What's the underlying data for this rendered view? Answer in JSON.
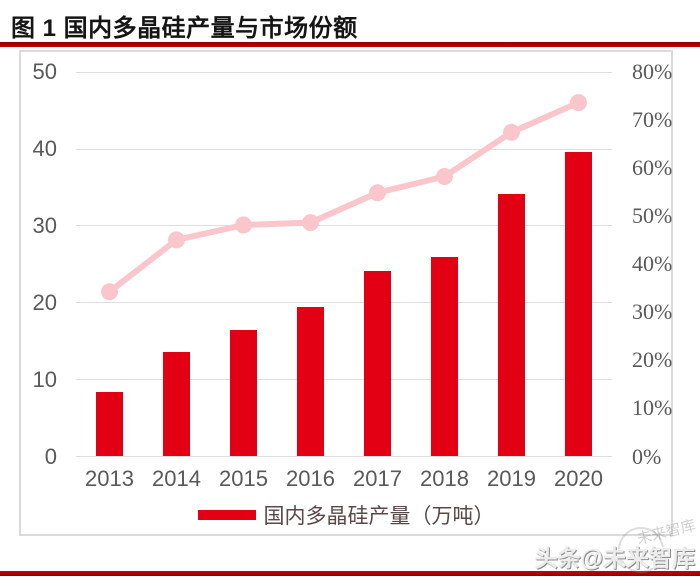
{
  "header": {
    "title": "图 1 国内多晶硅产量与市场份额"
  },
  "colors": {
    "bar": "#E30015",
    "line": "#FAC6CC",
    "accent_rule": "#C00000",
    "grid": "#DEDEDE",
    "box_border": "#DADADA",
    "axis_text": "#595959",
    "legend_text": "#5A4747"
  },
  "chart_data": {
    "type": "bar+line combo, dual axis",
    "title": "国内多晶硅产量与市场份额",
    "categories": [
      "2013",
      "2014",
      "2015",
      "2016",
      "2017",
      "2018",
      "2019",
      "2020"
    ],
    "series": [
      {
        "name": "国内多晶硅产量（万吨）",
        "type": "bar",
        "axis": "left",
        "values": [
          8.4,
          13.6,
          16.5,
          19.4,
          24.2,
          26.0,
          34.2,
          39.6
        ]
      },
      {
        "name": "市场份额",
        "type": "line",
        "axis": "right",
        "values": [
          34.3,
          45.1,
          48.2,
          48.7,
          54.9,
          58.3,
          67.5,
          73.7
        ]
      }
    ],
    "left_axis": {
      "min": 0,
      "max": 50,
      "step": 10,
      "ticks": [
        "0",
        "10",
        "20",
        "30",
        "40",
        "50"
      ]
    },
    "right_axis": {
      "min": 0,
      "max": 80,
      "step": 10,
      "ticks": [
        "0%",
        "10%",
        "20%",
        "30%",
        "40%",
        "50%",
        "60%",
        "70%",
        "80%"
      ]
    },
    "grid": true,
    "legend_position": "bottom",
    "legend": [
      {
        "label": "国内多晶硅产量（万吨）",
        "swatch": "#E30015"
      }
    ]
  },
  "watermark": {
    "text": "头条@未来智库",
    "ghost": "未来智库"
  }
}
